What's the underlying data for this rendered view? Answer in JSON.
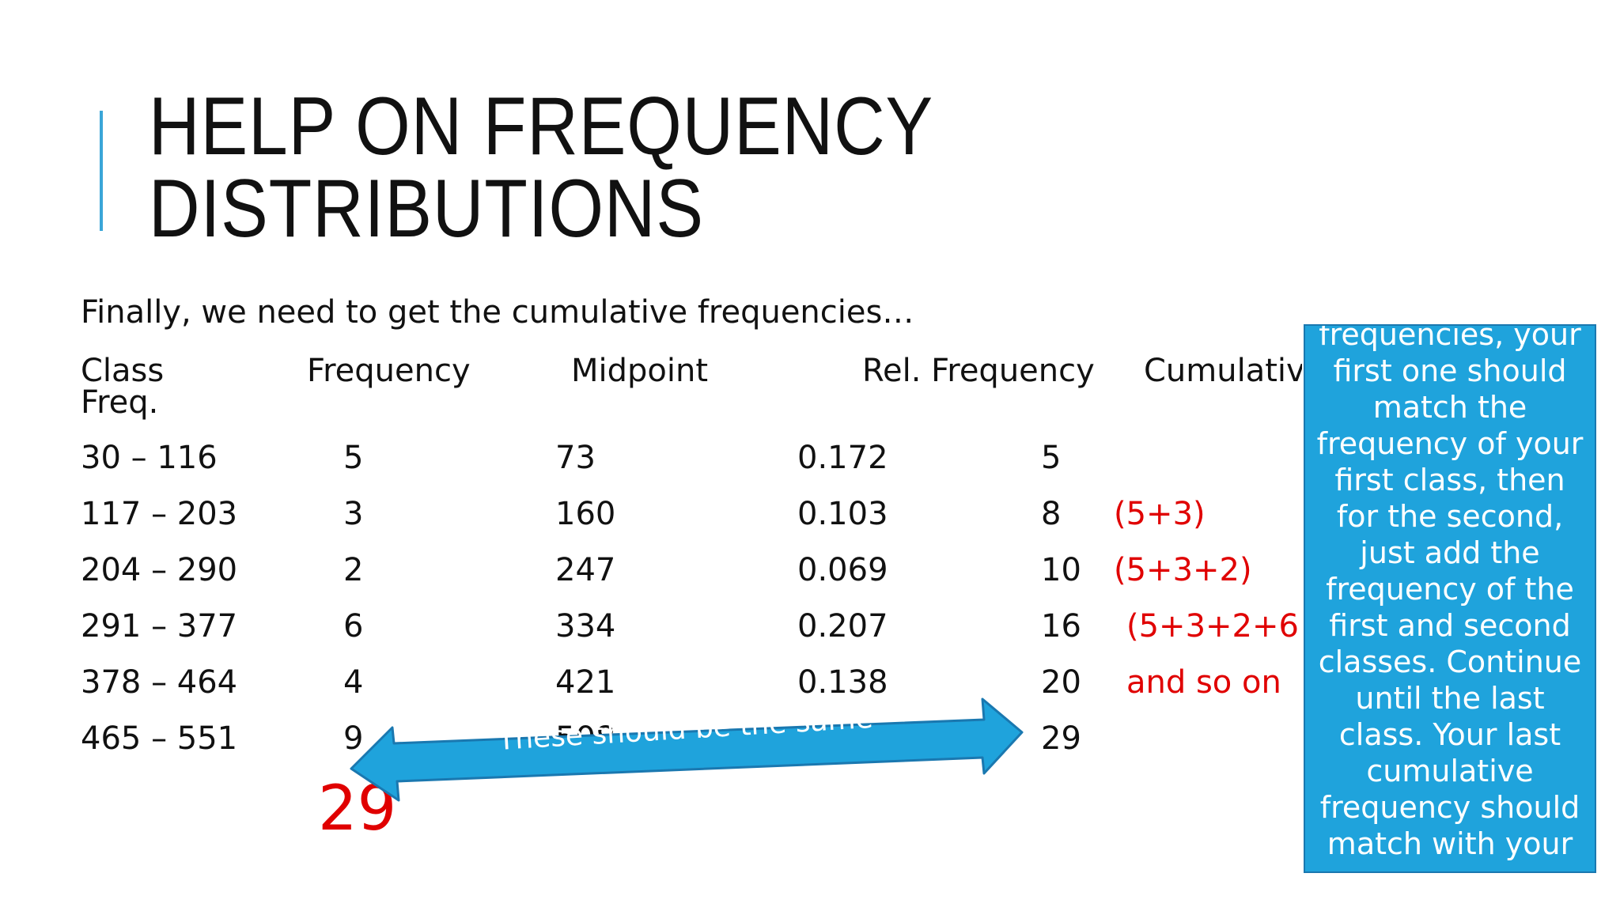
{
  "slide": {
    "title_line1": "HELP ON FREQUENCY",
    "title_line2": "DISTRIBUTIONS",
    "intro": "Finally, we need to get the cumulative frequencies…"
  },
  "table": {
    "headers": {
      "class": "Class",
      "frequency": "Frequency",
      "midpoint": "Midpoint",
      "rel_frequency": "Rel. Frequency",
      "cumulative": "Cumulativ",
      "freq_wrap": "Freq."
    },
    "rows": [
      {
        "class": "30 – 116",
        "frequency": "5",
        "midpoint": "73",
        "rel": "0.172",
        "cum": "5",
        "note": ""
      },
      {
        "class": "117 – 203",
        "frequency": "3",
        "midpoint": "160",
        "rel": "0.103",
        "cum": "8",
        "note": "(5+3)"
      },
      {
        "class": "204 – 290",
        "frequency": "2",
        "midpoint": "247",
        "rel": "0.069",
        "cum": "10",
        "note": "(5+3+2)"
      },
      {
        "class": "291 – 377",
        "frequency": "6",
        "midpoint": "334",
        "rel": "0.207",
        "cum": "16",
        "note": "(5+3+2+6"
      },
      {
        "class": "378 – 464",
        "frequency": "4",
        "midpoint": "421",
        "rel": "0.138",
        "cum": "20",
        "note": "and so on"
      },
      {
        "class": "465 – 551",
        "frequency": "9",
        "midpoint": "508",
        "rel": "",
        "cum": "29",
        "note": ""
      }
    ],
    "frequency_total": "29"
  },
  "callouts": {
    "arrow_label": "These should be the same",
    "note": "frequencies, your\nfirst one should\nmatch the\nfrequency of your\nfirst class, then\nfor the second,\njust add the\nfrequency of the\nfirst and second\nclasses. Continue\nuntil the last\nclass.  Your last\ncumulative\nfrequency should\nmatch with your",
    "note_color": "#1fa3dc",
    "accent_color": "#3aa6d8",
    "highlight_color": "#e00000"
  }
}
